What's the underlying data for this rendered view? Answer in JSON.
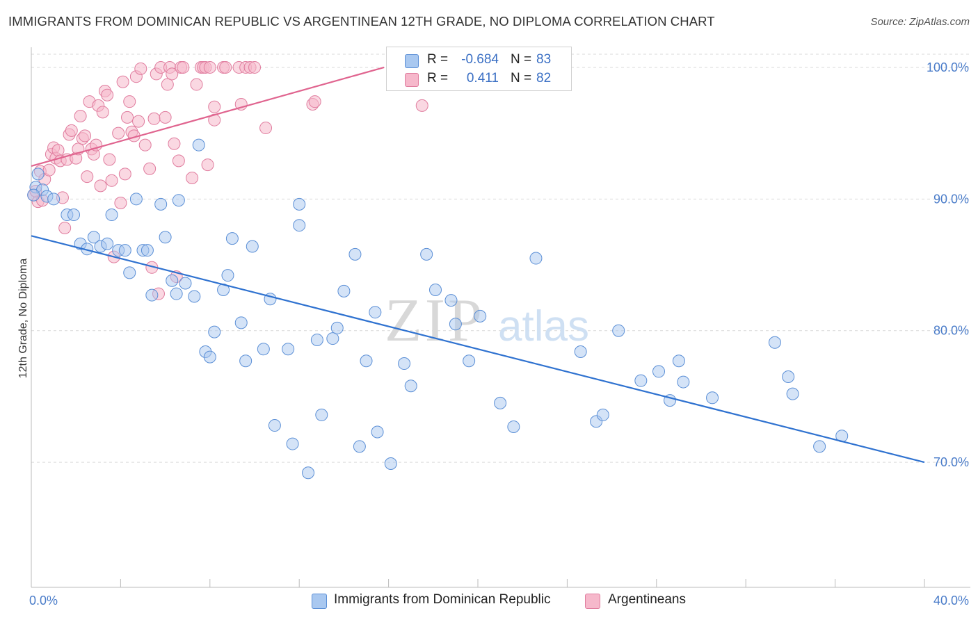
{
  "header": {
    "title": "IMMIGRANTS FROM DOMINICAN REPUBLIC VS ARGENTINEAN 12TH GRADE, NO DIPLOMA CORRELATION CHART",
    "source": "Source: ZipAtlas.com"
  },
  "watermark": {
    "zip": "ZIP",
    "atlas": "atlas"
  },
  "colors": {
    "blue_fill": "#a9c8f0",
    "blue_stroke": "#5b8fd6",
    "blue_line": "#2f72d0",
    "pink_fill": "#f6b8cb",
    "pink_stroke": "#e07c9e",
    "pink_line": "#e0648f",
    "tick_label": "#4a7cc9",
    "grid": "#d9d9d9"
  },
  "legend": {
    "rows": [
      {
        "r_label": "R =",
        "r_value": "-0.684",
        "n_label": "N =",
        "n_value": "83"
      },
      {
        "r_label": "R =",
        "r_value": "0.411",
        "n_label": "N =",
        "n_value": "82"
      }
    ]
  },
  "bottom_legend": {
    "items": [
      "Immigrants from Dominican Republic",
      "Argentineans"
    ]
  },
  "chart_data": {
    "type": "scatter",
    "xlabel": "",
    "ylabel": "12th Grade, No Diploma",
    "xlim": [
      0,
      40
    ],
    "ylim": [
      60.5,
      101
    ],
    "x_tick_labels": [
      "0.0%",
      "40.0%"
    ],
    "y_ticks": [
      70,
      80,
      90,
      100
    ],
    "y_tick_labels": [
      "70.0%",
      "80.0%",
      "90.0%",
      "100.0%"
    ],
    "grid": true,
    "legend_position": "top-center",
    "series": [
      {
        "name": "Immigrants from Dominican Republic",
        "r": -0.684,
        "n": 83,
        "trend": {
          "x": [
            0,
            40
          ],
          "y": [
            87.2,
            70.0
          ]
        },
        "points": [
          [
            0.2,
            90.9
          ],
          [
            0.3,
            91.9
          ],
          [
            0.5,
            90.7
          ],
          [
            0.7,
            90.2
          ],
          [
            1.0,
            90.0
          ],
          [
            1.6,
            88.8
          ],
          [
            1.9,
            88.8
          ],
          [
            2.2,
            86.6
          ],
          [
            2.5,
            86.2
          ],
          [
            2.8,
            87.1
          ],
          [
            3.1,
            86.4
          ],
          [
            3.4,
            86.6
          ],
          [
            3.6,
            88.8
          ],
          [
            3.9,
            86.1
          ],
          [
            4.2,
            86.1
          ],
          [
            4.4,
            84.4
          ],
          [
            4.7,
            90.0
          ],
          [
            5.0,
            86.1
          ],
          [
            5.2,
            86.1
          ],
          [
            5.4,
            82.7
          ],
          [
            5.8,
            89.6
          ],
          [
            6.0,
            87.1
          ],
          [
            6.3,
            83.8
          ],
          [
            6.5,
            82.8
          ],
          [
            6.6,
            89.9
          ],
          [
            6.9,
            83.6
          ],
          [
            7.3,
            82.6
          ],
          [
            7.5,
            94.1
          ],
          [
            7.8,
            78.4
          ],
          [
            8.0,
            78.0
          ],
          [
            8.2,
            79.9
          ],
          [
            8.6,
            83.1
          ],
          [
            8.8,
            84.2
          ],
          [
            9.0,
            87.0
          ],
          [
            9.4,
            80.6
          ],
          [
            9.6,
            77.7
          ],
          [
            9.9,
            86.4
          ],
          [
            10.4,
            78.6
          ],
          [
            10.7,
            82.4
          ],
          [
            10.9,
            72.8
          ],
          [
            11.5,
            78.6
          ],
          [
            11.7,
            71.4
          ],
          [
            12.0,
            89.6
          ],
          [
            12.0,
            88.0
          ],
          [
            12.4,
            69.2
          ],
          [
            12.8,
            79.3
          ],
          [
            13.0,
            73.6
          ],
          [
            13.5,
            79.4
          ],
          [
            13.7,
            80.2
          ],
          [
            14.0,
            83.0
          ],
          [
            14.5,
            85.8
          ],
          [
            14.7,
            71.2
          ],
          [
            15.0,
            77.7
          ],
          [
            15.4,
            81.4
          ],
          [
            15.5,
            72.3
          ],
          [
            16.1,
            69.9
          ],
          [
            16.7,
            77.5
          ],
          [
            17.0,
            75.8
          ],
          [
            17.7,
            85.8
          ],
          [
            18.1,
            83.1
          ],
          [
            18.8,
            82.3
          ],
          [
            19.0,
            80.5
          ],
          [
            19.6,
            77.7
          ],
          [
            20.1,
            81.1
          ],
          [
            21.0,
            74.5
          ],
          [
            21.6,
            72.7
          ],
          [
            22.6,
            85.5
          ],
          [
            24.6,
            78.4
          ],
          [
            25.3,
            73.1
          ],
          [
            25.6,
            73.6
          ],
          [
            26.3,
            80.0
          ],
          [
            27.3,
            76.2
          ],
          [
            28.1,
            76.9
          ],
          [
            28.6,
            74.7
          ],
          [
            29.0,
            77.7
          ],
          [
            29.2,
            76.1
          ],
          [
            30.5,
            74.9
          ],
          [
            33.3,
            79.1
          ],
          [
            33.9,
            76.5
          ],
          [
            34.1,
            75.2
          ],
          [
            35.3,
            71.2
          ],
          [
            36.3,
            72.0
          ],
          [
            0.1,
            90.3
          ]
        ]
      },
      {
        "name": "Argentineans",
        "r": 0.411,
        "n": 82,
        "trend": {
          "x": [
            0,
            15.8
          ],
          "y": [
            92.5,
            100.0
          ]
        },
        "points": [
          [
            0.1,
            90.3
          ],
          [
            0.3,
            89.8
          ],
          [
            0.4,
            92.1
          ],
          [
            0.6,
            91.5
          ],
          [
            0.8,
            92.2
          ],
          [
            0.9,
            93.4
          ],
          [
            1.0,
            93.9
          ],
          [
            1.1,
            93.1
          ],
          [
            1.2,
            93.7
          ],
          [
            1.3,
            92.9
          ],
          [
            1.4,
            90.1
          ],
          [
            1.5,
            87.8
          ],
          [
            1.6,
            93.0
          ],
          [
            1.7,
            94.9
          ],
          [
            1.8,
            95.2
          ],
          [
            2.0,
            93.1
          ],
          [
            2.1,
            93.8
          ],
          [
            2.2,
            96.3
          ],
          [
            2.3,
            94.6
          ],
          [
            2.4,
            94.8
          ],
          [
            2.5,
            91.7
          ],
          [
            2.6,
            97.4
          ],
          [
            2.7,
            93.8
          ],
          [
            2.8,
            93.4
          ],
          [
            2.9,
            94.1
          ],
          [
            3.0,
            97.1
          ],
          [
            3.1,
            91.0
          ],
          [
            3.2,
            96.6
          ],
          [
            3.3,
            98.2
          ],
          [
            3.4,
            97.9
          ],
          [
            3.5,
            93.0
          ],
          [
            3.6,
            91.4
          ],
          [
            3.7,
            85.6
          ],
          [
            3.9,
            95.0
          ],
          [
            4.0,
            89.7
          ],
          [
            4.1,
            98.9
          ],
          [
            4.2,
            91.9
          ],
          [
            4.3,
            96.2
          ],
          [
            4.4,
            97.4
          ],
          [
            4.5,
            95.1
          ],
          [
            4.6,
            94.8
          ],
          [
            4.7,
            99.3
          ],
          [
            4.8,
            95.9
          ],
          [
            4.9,
            99.9
          ],
          [
            5.1,
            94.1
          ],
          [
            5.3,
            92.3
          ],
          [
            5.4,
            84.8
          ],
          [
            5.5,
            96.1
          ],
          [
            5.6,
            99.5
          ],
          [
            5.7,
            82.8
          ],
          [
            5.8,
            100.0
          ],
          [
            6.0,
            96.2
          ],
          [
            6.1,
            98.7
          ],
          [
            6.2,
            100.0
          ],
          [
            6.3,
            99.5
          ],
          [
            6.4,
            94.2
          ],
          [
            6.5,
            84.1
          ],
          [
            6.6,
            92.9
          ],
          [
            6.7,
            100.0
          ],
          [
            6.8,
            100.0
          ],
          [
            7.2,
            91.6
          ],
          [
            7.4,
            98.7
          ],
          [
            7.6,
            100.0
          ],
          [
            7.7,
            100.0
          ],
          [
            7.8,
            100.0
          ],
          [
            7.9,
            92.6
          ],
          [
            8.0,
            100.0
          ],
          [
            8.2,
            97.0
          ],
          [
            8.2,
            96.0
          ],
          [
            8.6,
            100.0
          ],
          [
            8.7,
            100.0
          ],
          [
            9.3,
            100.0
          ],
          [
            9.4,
            97.2
          ],
          [
            9.6,
            100.0
          ],
          [
            9.8,
            100.0
          ],
          [
            10.0,
            100.0
          ],
          [
            10.5,
            95.4
          ],
          [
            12.6,
            97.2
          ],
          [
            12.7,
            97.4
          ],
          [
            17.5,
            97.1
          ],
          [
            0.2,
            90.6
          ],
          [
            0.5,
            89.9
          ]
        ]
      }
    ]
  }
}
